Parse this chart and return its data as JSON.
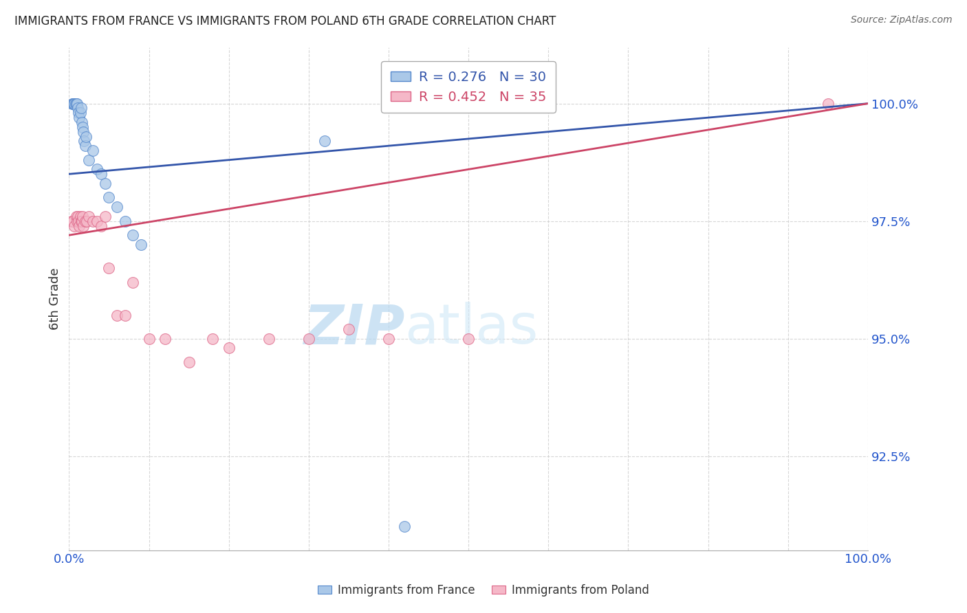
{
  "title": "IMMIGRANTS FROM FRANCE VS IMMIGRANTS FROM POLAND 6TH GRADE CORRELATION CHART",
  "source": "Source: ZipAtlas.com",
  "ylabel": "6th Grade",
  "y_tick_values": [
    92.5,
    95.0,
    97.5,
    100.0
  ],
  "xlim": [
    0.0,
    100.0
  ],
  "ylim": [
    90.5,
    101.2
  ],
  "bottom_legend": [
    "Immigrants from France",
    "Immigrants from Poland"
  ],
  "watermark_zip": "ZIP",
  "watermark_atlas": "atlas",
  "france_color": "#aac8e8",
  "poland_color": "#f5b8c8",
  "france_edge_color": "#5588cc",
  "poland_edge_color": "#dd6688",
  "france_line_color": "#3355aa",
  "poland_line_color": "#cc4466",
  "france_R": 0.276,
  "france_N": 30,
  "poland_R": 0.452,
  "poland_N": 35,
  "france_x": [
    0.4,
    0.5,
    0.6,
    0.7,
    0.8,
    0.9,
    1.0,
    1.1,
    1.2,
    1.3,
    1.4,
    1.5,
    1.6,
    1.7,
    1.8,
    1.9,
    2.0,
    2.1,
    2.5,
    3.0,
    3.5,
    4.0,
    4.5,
    5.0,
    6.0,
    7.0,
    8.0,
    9.0,
    32.0,
    42.0
  ],
  "france_y": [
    100.0,
    100.0,
    100.0,
    100.0,
    100.0,
    100.0,
    100.0,
    99.9,
    99.8,
    99.7,
    99.8,
    99.9,
    99.6,
    99.5,
    99.4,
    99.2,
    99.1,
    99.3,
    98.8,
    99.0,
    98.6,
    98.5,
    98.3,
    98.0,
    97.8,
    97.5,
    97.2,
    97.0,
    99.2,
    91.0
  ],
  "poland_x": [
    0.3,
    0.5,
    0.7,
    0.9,
    1.0,
    1.1,
    1.2,
    1.3,
    1.4,
    1.5,
    1.6,
    1.7,
    1.8,
    2.0,
    2.2,
    2.5,
    3.0,
    3.5,
    4.0,
    4.5,
    5.0,
    6.0,
    7.0,
    8.0,
    10.0,
    12.0,
    15.0,
    18.0,
    20.0,
    25.0,
    30.0,
    35.0,
    40.0,
    50.0,
    95.0
  ],
  "poland_y": [
    97.5,
    97.5,
    97.4,
    97.6,
    97.5,
    97.6,
    97.5,
    97.4,
    97.6,
    97.5,
    97.5,
    97.6,
    97.4,
    97.5,
    97.5,
    97.6,
    97.5,
    97.5,
    97.4,
    97.6,
    96.5,
    95.5,
    95.5,
    96.2,
    95.0,
    95.0,
    94.5,
    95.0,
    94.8,
    95.0,
    95.0,
    95.2,
    95.0,
    95.0,
    100.0
  ],
  "grid_color": "#cccccc",
  "title_color": "#222222",
  "axis_label_color": "#333333",
  "tick_color": "#2255cc",
  "background_color": "#ffffff"
}
